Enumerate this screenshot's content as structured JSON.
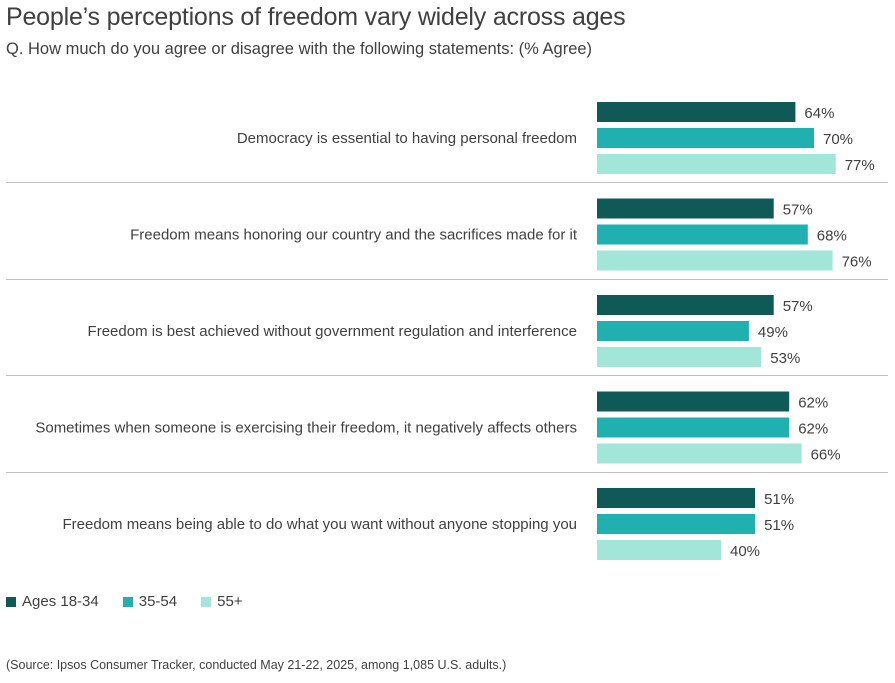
{
  "chart_data": {
    "type": "bar",
    "orientation": "horizontal",
    "title": "People’s perceptions of freedom vary widely across ages",
    "subtitle": "Q. How much do you agree or disagree with the following statements: (% Agree)",
    "categories": [
      "Democracy is essential to having personal freedom",
      "Freedom means honoring our country and the sacrifices made for it",
      "Freedom is best achieved without government regulation and interference",
      "Sometimes when someone is exercising their freedom, it negatively affects others",
      "Freedom means being able to do what you want without anyone stopping you"
    ],
    "series": [
      {
        "name": "Ages 18-34",
        "color": "#0f5957",
        "values": [
          64,
          57,
          57,
          62,
          51
        ],
        "labels": [
          "64%",
          "57%",
          "57%",
          "62%",
          "51%"
        ]
      },
      {
        "name": "35-54",
        "color": "#1fb0af",
        "values": [
          70,
          68,
          49,
          62,
          51
        ],
        "labels": [
          "70%",
          "68%",
          "49%",
          "62%",
          "51%"
        ]
      },
      {
        "name": "55+",
        "color": "#a1e6d9",
        "values": [
          77,
          76,
          53,
          66,
          40
        ],
        "labels": [
          "77%",
          "76%",
          "53%",
          "66%",
          "40%"
        ]
      }
    ],
    "xlim": [
      0,
      100
    ],
    "unit": "%",
    "grid": false,
    "legend_position": "bottom-left",
    "xlabel": "",
    "ylabel": ""
  },
  "source": "(Source: Ipsos Consumer Tracker, conducted May 21-22, 2025, among 1,085 U.S. adults.)",
  "colors": {
    "text": "#404040",
    "separator": "#c0c0c0"
  }
}
